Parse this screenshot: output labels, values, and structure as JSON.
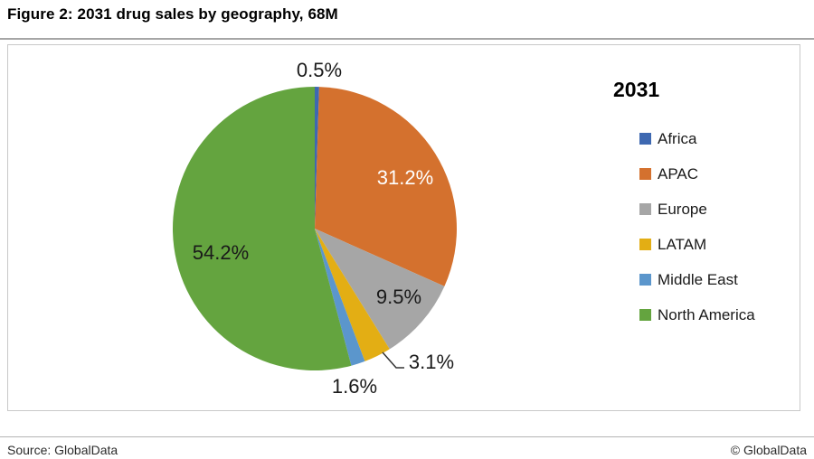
{
  "page": {
    "title": "Figure 2: 2031 drug sales by geography, 68M",
    "footer": {
      "source": "Source: GlobalData",
      "copyright": "© GlobalData"
    }
  },
  "chart_data": {
    "type": "pie",
    "title": "2031",
    "unit": "percent",
    "start_angle_deg": 0,
    "direction": "clockwise",
    "legend_position": "right",
    "series": [
      {
        "name": "Africa",
        "value": 0.5,
        "label": "0.5%",
        "color": "#3e68b1",
        "label_placement": "outside",
        "label_color": "#1a1a1a"
      },
      {
        "name": "APAC",
        "value": 31.2,
        "label": "31.2%",
        "color": "#d4712e",
        "label_placement": "inside",
        "label_color": "#ffffff"
      },
      {
        "name": "Europe",
        "value": 9.5,
        "label": "9.5%",
        "color": "#a6a6a6",
        "label_placement": "inside",
        "label_color": "#1a1a1a"
      },
      {
        "name": "LATAM",
        "value": 3.1,
        "label": "3.1%",
        "color": "#e3ae14",
        "label_placement": "outside-leader",
        "label_color": "#1a1a1a"
      },
      {
        "name": "Middle East",
        "value": 1.6,
        "label": "1.6%",
        "color": "#5b96cc",
        "label_placement": "outside",
        "label_color": "#1a1a1a"
      },
      {
        "name": "North America",
        "value": 54.2,
        "label": "54.2%",
        "color": "#64a43f",
        "label_placement": "inside",
        "label_color": "#1a1a1a"
      }
    ]
  }
}
